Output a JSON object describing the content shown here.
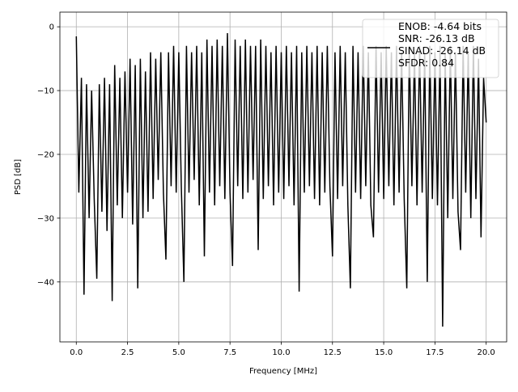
{
  "chart_data": {
    "type": "line",
    "title": "",
    "xlabel": "Frequency [MHz]",
    "ylabel": "PSD [dB]",
    "xlim": [
      -0.8,
      21.0
    ],
    "ylim": [
      -49.4,
      2.3
    ],
    "xticks": [
      0,
      2.5,
      5,
      7.5,
      10,
      12.5,
      15,
      17.5,
      20
    ],
    "xtick_labels": [
      "0.0",
      "2.5",
      "5.0",
      "7.5",
      "10.0",
      "12.5",
      "15.0",
      "17.5",
      "20.0"
    ],
    "yticks": [
      0,
      -10,
      -20,
      -30,
      -40
    ],
    "ytick_labels": [
      "0",
      "−10",
      "−20",
      "−30",
      "−40"
    ],
    "grid": true,
    "legend": {
      "placement": "top-right",
      "entries": [
        "ENOB: -4.64 bits",
        "SNR: -26.13 dB",
        "SINAD: -26.14 dB",
        "SFDR: 0.84"
      ]
    },
    "line_color": "#000000",
    "series": [
      {
        "name": "PSD",
        "x_start": 0,
        "x_step": 0.125,
        "values": [
          -1.5,
          -26,
          -8,
          -42,
          -9,
          -30,
          -10,
          -27,
          -39.5,
          -9,
          -29,
          -8,
          -32,
          -9,
          -43,
          -6,
          -28,
          -8,
          -30,
          -7,
          -26,
          -5,
          -31,
          -6,
          -41,
          -5,
          -30,
          -7,
          -29,
          -4,
          -27,
          -5,
          -24,
          -4,
          -26,
          -36.5,
          -4,
          -25,
          -3,
          -26,
          -4,
          -25,
          -40,
          -3,
          -26,
          -4,
          -24,
          -3,
          -28,
          -4,
          -36,
          -2,
          -26,
          -3,
          -28,
          -2,
          -25,
          -3,
          -27,
          -1,
          -26,
          -37.5,
          -2,
          -25,
          -3,
          -27,
          -2,
          -26,
          -3,
          -24,
          -3,
          -35,
          -2,
          -27,
          -3,
          -25,
          -4,
          -28,
          -3,
          -26,
          -4,
          -27,
          -3,
          -25,
          -4,
          -28,
          -3,
          -41.5,
          -4,
          -26,
          -3,
          -25,
          -4,
          -27,
          -3,
          -28,
          -4,
          -26,
          -3,
          -25,
          -36,
          -4,
          -27,
          -3,
          -25,
          -4,
          -28,
          -41,
          -3,
          -26,
          -4,
          -27,
          -3,
          -25,
          -4,
          -28,
          -33,
          -3,
          -26,
          -4,
          -27,
          -3,
          -25,
          -4,
          -28,
          -3,
          -26,
          -4,
          -27,
          -41,
          -3,
          -25,
          -4,
          -28,
          -3,
          -26,
          -4,
          -40,
          -3,
          -27,
          -4,
          -28,
          -3,
          -47,
          -4,
          -30,
          -3,
          -27,
          -4,
          -29,
          -35,
          -3,
          -26,
          -4,
          -30,
          -3,
          -27,
          -5,
          -33,
          -8,
          -15
        ]
      }
    ]
  }
}
